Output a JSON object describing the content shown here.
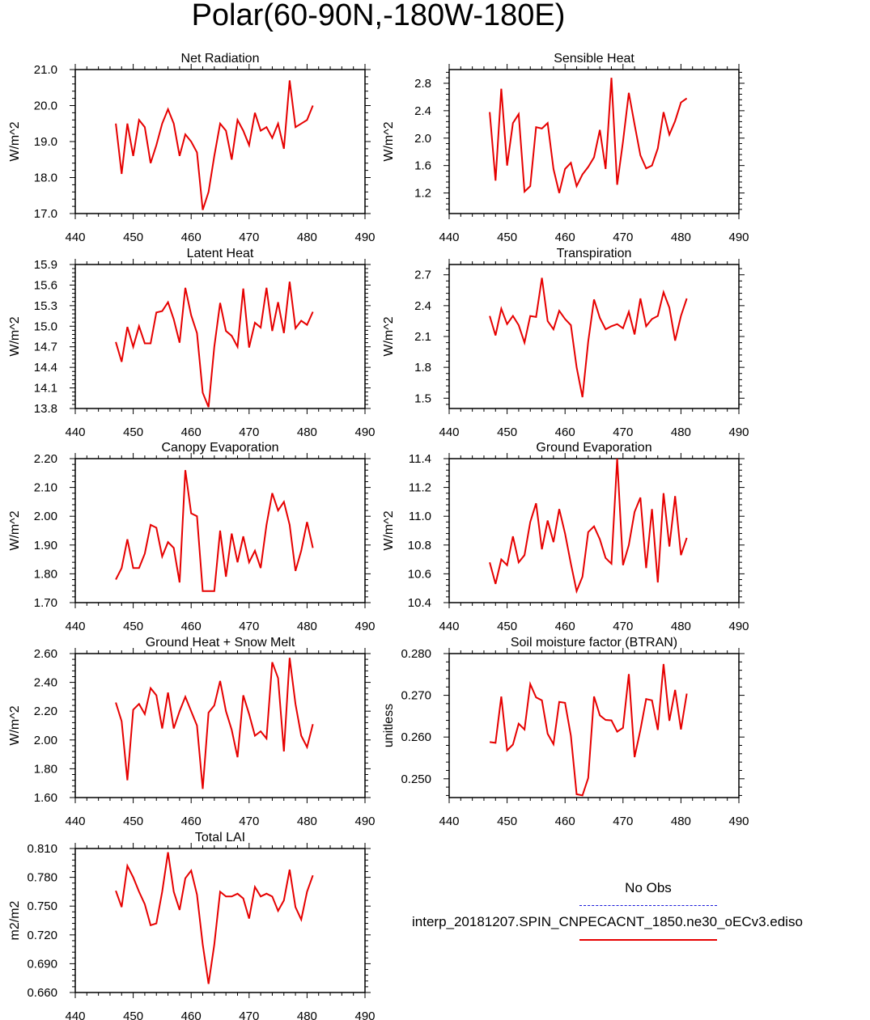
{
  "page_title": "Polar(60-90N,-180W-180E)",
  "colors": {
    "model": "#e60000",
    "obs": "#1a1ad9",
    "axis": "#000000"
  },
  "legend": {
    "obs_label": "No Obs",
    "model_label": "interp_20181207.SPIN_CNPECACNT_1850.ne30_oECv3.ediso"
  },
  "chart_data": [
    {
      "type": "line",
      "title": "Net Radiation",
      "ylabel": "W/m^2",
      "xlim": [
        440,
        490
      ],
      "x_ticks": [
        440,
        450,
        460,
        470,
        480,
        490
      ],
      "ylim": [
        17.0,
        21.0
      ],
      "y_ticks": [
        "17.0",
        "18.0",
        "19.0",
        "20.0",
        "21.0"
      ],
      "x": [
        447,
        448,
        449,
        450,
        451,
        452,
        453,
        454,
        455,
        456,
        457,
        458,
        459,
        460,
        461,
        462,
        463,
        464,
        465,
        466,
        467,
        468,
        469,
        470,
        471,
        472,
        473,
        474,
        475,
        476,
        477,
        478,
        479,
        480,
        481
      ],
      "series": [
        {
          "values": [
            19.5,
            18.1,
            19.5,
            18.6,
            19.6,
            19.4,
            18.4,
            18.9,
            19.5,
            19.9,
            19.5,
            18.6,
            19.2,
            19.0,
            18.7,
            17.1,
            17.6,
            18.6,
            19.5,
            19.3,
            18.5,
            19.6,
            19.3,
            18.9,
            19.8,
            19.3,
            19.4,
            19.1,
            19.5,
            18.8,
            20.7,
            19.4,
            19.5,
            19.6,
            20.0
          ]
        }
      ]
    },
    {
      "type": "line",
      "title": "Sensible Heat",
      "ylabel": "W/m^2",
      "xlim": [
        440,
        490
      ],
      "x_ticks": [
        440,
        450,
        460,
        470,
        480,
        490
      ],
      "ylim": [
        0.9,
        3.0
      ],
      "y_ticks": [
        "1.2",
        "1.6",
        "2.0",
        "2.4",
        "2.8"
      ],
      "x": [
        447,
        448,
        449,
        450,
        451,
        452,
        453,
        454,
        455,
        456,
        457,
        458,
        459,
        460,
        461,
        462,
        463,
        464,
        465,
        466,
        467,
        468,
        469,
        470,
        471,
        472,
        473,
        474,
        475,
        476,
        477,
        478,
        479,
        480,
        481
      ],
      "series": [
        {
          "values": [
            2.38,
            1.38,
            2.72,
            1.6,
            2.22,
            2.35,
            1.22,
            1.3,
            2.16,
            2.14,
            2.22,
            1.55,
            1.2,
            1.55,
            1.64,
            1.3,
            1.47,
            1.58,
            1.72,
            2.12,
            1.55,
            2.88,
            1.32,
            1.95,
            2.66,
            2.2,
            1.75,
            1.56,
            1.6,
            1.85,
            2.38,
            2.05,
            2.25,
            2.52,
            2.58
          ]
        }
      ]
    },
    {
      "type": "line",
      "title": "Latent Heat",
      "ylabel": "W/m^2",
      "xlim": [
        440,
        490
      ],
      "x_ticks": [
        440,
        450,
        460,
        470,
        480,
        490
      ],
      "ylim": [
        13.8,
        15.9
      ],
      "y_ticks": [
        "13.8",
        "14.1",
        "14.4",
        "14.7",
        "15.0",
        "15.3",
        "15.6",
        "15.9"
      ],
      "x": [
        447,
        448,
        449,
        450,
        451,
        452,
        453,
        454,
        455,
        456,
        457,
        458,
        459,
        460,
        461,
        462,
        463,
        464,
        465,
        466,
        467,
        468,
        469,
        470,
        471,
        472,
        473,
        474,
        475,
        476,
        477,
        478,
        479,
        480,
        481
      ],
      "series": [
        {
          "values": [
            14.77,
            14.48,
            14.99,
            14.7,
            15.0,
            14.75,
            14.75,
            15.2,
            15.22,
            15.35,
            15.1,
            14.76,
            15.56,
            15.16,
            14.9,
            14.03,
            13.82,
            14.7,
            15.34,
            14.93,
            14.86,
            14.7,
            15.55,
            14.69,
            15.05,
            14.98,
            15.56,
            14.93,
            15.35,
            14.9,
            15.65,
            14.97,
            15.08,
            15.02,
            15.21
          ]
        }
      ]
    },
    {
      "type": "line",
      "title": "Transpiration",
      "ylabel": "W/m^2",
      "xlim": [
        440,
        490
      ],
      "x_ticks": [
        440,
        450,
        460,
        470,
        480,
        490
      ],
      "ylim": [
        1.4,
        2.8
      ],
      "y_ticks": [
        "1.5",
        "1.8",
        "2.1",
        "2.4",
        "2.7"
      ],
      "x": [
        447,
        448,
        449,
        450,
        451,
        452,
        453,
        454,
        455,
        456,
        457,
        458,
        459,
        460,
        461,
        462,
        463,
        464,
        465,
        466,
        467,
        468,
        469,
        470,
        471,
        472,
        473,
        474,
        475,
        476,
        477,
        478,
        479,
        480,
        481
      ],
      "series": [
        {
          "values": [
            2.3,
            2.11,
            2.37,
            2.22,
            2.3,
            2.21,
            2.04,
            2.3,
            2.29,
            2.67,
            2.25,
            2.17,
            2.35,
            2.27,
            2.21,
            1.8,
            1.51,
            2.05,
            2.46,
            2.28,
            2.17,
            2.2,
            2.22,
            2.18,
            2.34,
            2.12,
            2.47,
            2.2,
            2.27,
            2.3,
            2.53,
            2.38,
            2.06,
            2.3,
            2.47
          ]
        }
      ]
    },
    {
      "type": "line",
      "title": "Canopy Evaporation",
      "ylabel": "W/m^2",
      "xlim": [
        440,
        490
      ],
      "x_ticks": [
        440,
        450,
        460,
        470,
        480,
        490
      ],
      "ylim": [
        1.7,
        2.2
      ],
      "y_ticks": [
        "1.70",
        "1.80",
        "1.90",
        "2.00",
        "2.10",
        "2.20"
      ],
      "x": [
        447,
        448,
        449,
        450,
        451,
        452,
        453,
        454,
        455,
        456,
        457,
        458,
        459,
        460,
        461,
        462,
        463,
        464,
        465,
        466,
        467,
        468,
        469,
        470,
        471,
        472,
        473,
        474,
        475,
        476,
        477,
        478,
        479,
        480,
        481
      ],
      "series": [
        {
          "values": [
            1.78,
            1.82,
            1.92,
            1.82,
            1.82,
            1.87,
            1.97,
            1.96,
            1.86,
            1.91,
            1.89,
            1.77,
            2.16,
            2.01,
            2.0,
            1.74,
            1.74,
            1.74,
            1.95,
            1.79,
            1.94,
            1.84,
            1.93,
            1.84,
            1.88,
            1.82,
            1.97,
            2.08,
            2.02,
            2.05,
            1.97,
            1.81,
            1.88,
            1.98,
            1.89
          ]
        }
      ]
    },
    {
      "type": "line",
      "title": "Ground Evaporation",
      "ylabel": "W/m^2",
      "xlim": [
        440,
        490
      ],
      "x_ticks": [
        440,
        450,
        460,
        470,
        480,
        490
      ],
      "ylim": [
        10.4,
        11.4
      ],
      "y_ticks": [
        "10.4",
        "10.6",
        "10.8",
        "11.0",
        "11.2",
        "11.4"
      ],
      "x": [
        447,
        448,
        449,
        450,
        451,
        452,
        453,
        454,
        455,
        456,
        457,
        458,
        459,
        460,
        461,
        462,
        463,
        464,
        465,
        466,
        467,
        468,
        469,
        470,
        471,
        472,
        473,
        474,
        475,
        476,
        477,
        478,
        479,
        480,
        481
      ],
      "series": [
        {
          "values": [
            10.68,
            10.53,
            10.7,
            10.66,
            10.86,
            10.68,
            10.73,
            10.96,
            11.09,
            10.77,
            10.97,
            10.82,
            11.05,
            10.88,
            10.67,
            10.48,
            10.58,
            10.89,
            10.93,
            10.84,
            10.71,
            10.67,
            11.4,
            10.66,
            10.8,
            11.03,
            11.13,
            10.64,
            11.05,
            10.54,
            11.16,
            10.79,
            11.14,
            10.73,
            10.85
          ]
        }
      ]
    },
    {
      "type": "line",
      "title": "Ground Heat + Snow Melt",
      "ylabel": "W/m^2",
      "xlim": [
        440,
        490
      ],
      "x_ticks": [
        440,
        450,
        460,
        470,
        480,
        490
      ],
      "ylim": [
        1.6,
        2.6
      ],
      "y_ticks": [
        "1.60",
        "1.80",
        "2.00",
        "2.20",
        "2.40",
        "2.60"
      ],
      "x": [
        447,
        448,
        449,
        450,
        451,
        452,
        453,
        454,
        455,
        456,
        457,
        458,
        459,
        460,
        461,
        462,
        463,
        464,
        465,
        466,
        467,
        468,
        469,
        470,
        471,
        472,
        473,
        474,
        475,
        476,
        477,
        478,
        479,
        480,
        481
      ],
      "series": [
        {
          "values": [
            2.26,
            2.13,
            1.72,
            2.21,
            2.25,
            2.18,
            2.36,
            2.31,
            2.08,
            2.33,
            2.08,
            2.2,
            2.3,
            2.2,
            2.1,
            1.66,
            2.19,
            2.24,
            2.41,
            2.2,
            2.07,
            1.88,
            2.31,
            2.18,
            2.03,
            2.06,
            2.01,
            2.54,
            2.43,
            1.92,
            2.57,
            2.25,
            2.03,
            1.95,
            2.11
          ]
        }
      ]
    },
    {
      "type": "line",
      "title": "Soil moisture factor (BTRAN)",
      "ylabel": "unitless",
      "xlim": [
        440,
        490
      ],
      "x_ticks": [
        440,
        450,
        460,
        470,
        480,
        490
      ],
      "ylim": [
        0.2455,
        0.28
      ],
      "y_ticks": [
        "0.250",
        "0.260",
        "0.270",
        "0.280"
      ],
      "x": [
        447,
        448,
        449,
        450,
        451,
        452,
        453,
        454,
        455,
        456,
        457,
        458,
        459,
        460,
        461,
        462,
        463,
        464,
        465,
        466,
        467,
        468,
        469,
        470,
        471,
        472,
        473,
        474,
        475,
        476,
        477,
        478,
        479,
        480,
        481
      ],
      "series": [
        {
          "values": [
            0.2588,
            0.2586,
            0.2697,
            0.2568,
            0.2582,
            0.2632,
            0.2618,
            0.2727,
            0.2695,
            0.2688,
            0.2608,
            0.2583,
            0.2684,
            0.2682,
            0.2603,
            0.2463,
            0.246,
            0.2502,
            0.2697,
            0.2652,
            0.2641,
            0.264,
            0.2613,
            0.2622,
            0.2751,
            0.2552,
            0.2617,
            0.2691,
            0.2688,
            0.2617,
            0.2775,
            0.2639,
            0.2713,
            0.2618,
            0.2704
          ]
        }
      ]
    },
    {
      "type": "line",
      "title": "Total LAI",
      "ylabel": "m2/m2",
      "xlim": [
        440,
        490
      ],
      "x_ticks": [
        440,
        450,
        460,
        470,
        480,
        490
      ],
      "ylim": [
        0.66,
        0.81
      ],
      "y_ticks": [
        "0.660",
        "0.690",
        "0.720",
        "0.750",
        "0.780",
        "0.810"
      ],
      "x": [
        447,
        448,
        449,
        450,
        451,
        452,
        453,
        454,
        455,
        456,
        457,
        458,
        459,
        460,
        461,
        462,
        463,
        464,
        465,
        466,
        467,
        468,
        469,
        470,
        471,
        472,
        473,
        474,
        475,
        476,
        477,
        478,
        479,
        480,
        481
      ],
      "series": [
        {
          "values": [
            0.766,
            0.749,
            0.792,
            0.78,
            0.765,
            0.752,
            0.73,
            0.732,
            0.765,
            0.806,
            0.765,
            0.746,
            0.779,
            0.787,
            0.762,
            0.71,
            0.669,
            0.71,
            0.765,
            0.76,
            0.76,
            0.763,
            0.758,
            0.737,
            0.77,
            0.76,
            0.763,
            0.76,
            0.745,
            0.756,
            0.788,
            0.749,
            0.736,
            0.765,
            0.782
          ]
        }
      ]
    }
  ]
}
